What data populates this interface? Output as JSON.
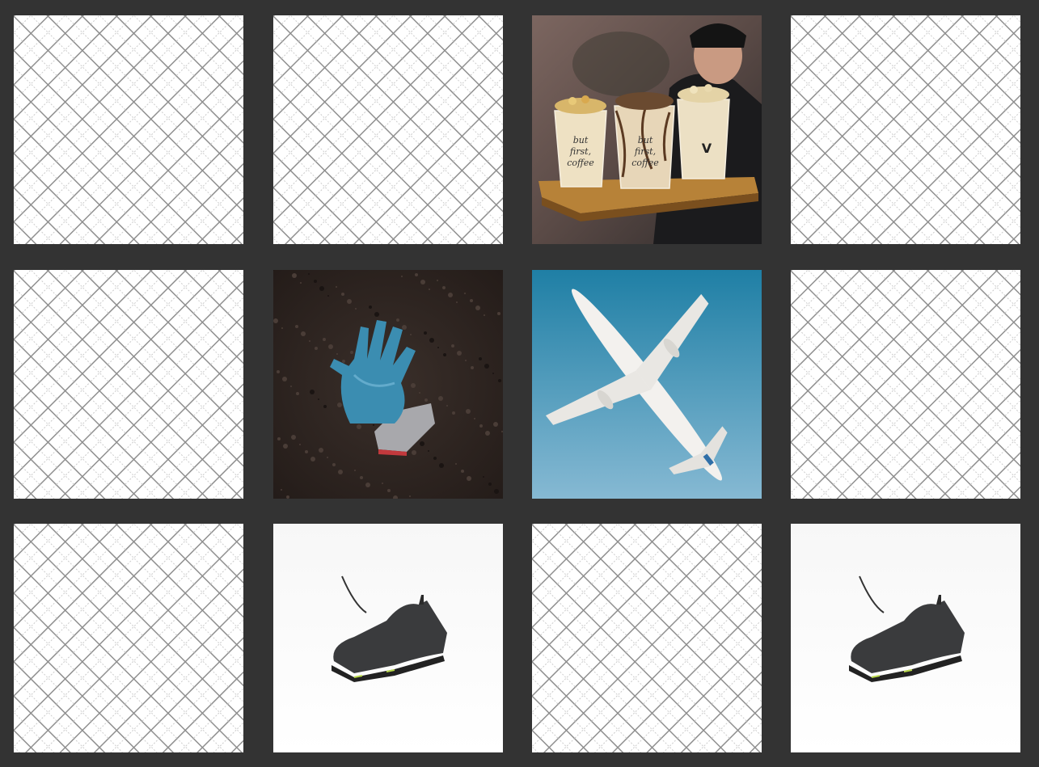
{
  "game": {
    "cards": [
      {
        "state": "face-down",
        "image": "card-back-lattice"
      },
      {
        "state": "face-down",
        "image": "card-back-lattice"
      },
      {
        "state": "face-up",
        "image": "coffee-cups-tray",
        "cup_text": [
          "but",
          "first,",
          "coffee"
        ],
        "cup_badge": "V"
      },
      {
        "state": "face-down",
        "image": "card-back-lattice"
      },
      {
        "state": "face-down",
        "image": "card-back-lattice"
      },
      {
        "state": "face-up",
        "image": "blue-gloves-on-soil"
      },
      {
        "state": "face-up",
        "image": "airplane-in-sky"
      },
      {
        "state": "face-down",
        "image": "card-back-lattice"
      },
      {
        "state": "face-down",
        "image": "card-back-lattice"
      },
      {
        "state": "face-up",
        "image": "black-sneaker"
      },
      {
        "state": "face-down",
        "image": "card-back-lattice"
      },
      {
        "state": "face-up",
        "image": "black-sneaker"
      }
    ]
  },
  "colors": {
    "background": "#333333",
    "card_back": "#ffffff",
    "lattice": "#8f8f8f",
    "sky": "#3a8ab0",
    "soil": "#2d2420",
    "glove": "#3d8fb0"
  }
}
